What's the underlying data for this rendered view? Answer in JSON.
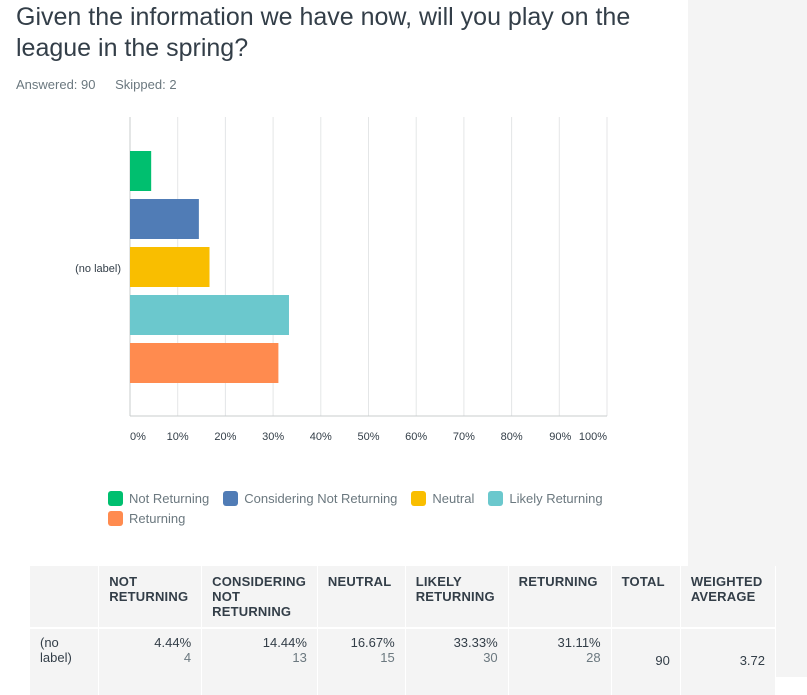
{
  "question": {
    "title": "Given the information we have now, will you play on the league in the spring?",
    "answered": "Answered: 90",
    "skipped": "Skipped: 2"
  },
  "chart_data": {
    "type": "bar",
    "orientation": "horizontal",
    "categories": [
      "(no label)"
    ],
    "xlim": [
      0,
      100
    ],
    "x_ticks": [
      "0%",
      "10%",
      "20%",
      "30%",
      "40%",
      "50%",
      "60%",
      "70%",
      "80%",
      "90%",
      "100%"
    ],
    "grid": true,
    "series": [
      {
        "name": "Not Returning",
        "values": [
          4.44
        ],
        "color": "#00bf6f"
      },
      {
        "name": "Considering Not Returning",
        "values": [
          14.44
        ],
        "color": "#507cb6"
      },
      {
        "name": "Neutral",
        "values": [
          16.67
        ],
        "color": "#f9be00"
      },
      {
        "name": "Likely Returning",
        "values": [
          33.33
        ],
        "color": "#6bc8cd"
      },
      {
        "name": "Returning",
        "values": [
          31.11
        ],
        "color": "#ff8b4f"
      }
    ],
    "legend_position": "bottom"
  },
  "table": {
    "headers": [
      "",
      "NOT RETURNING",
      "CONSIDERING NOT RETURNING",
      "NEUTRAL",
      "LIKELY RETURNING",
      "RETURNING",
      "TOTAL",
      "WEIGHTED AVERAGE"
    ],
    "row": {
      "label": "(no label)",
      "cells": [
        {
          "pct": "4.44%",
          "count": "4"
        },
        {
          "pct": "14.44%",
          "count": "13"
        },
        {
          "pct": "16.67%",
          "count": "15"
        },
        {
          "pct": "33.33%",
          "count": "30"
        },
        {
          "pct": "31.11%",
          "count": "28"
        }
      ],
      "total": "90",
      "weighted_average": "3.72"
    }
  }
}
